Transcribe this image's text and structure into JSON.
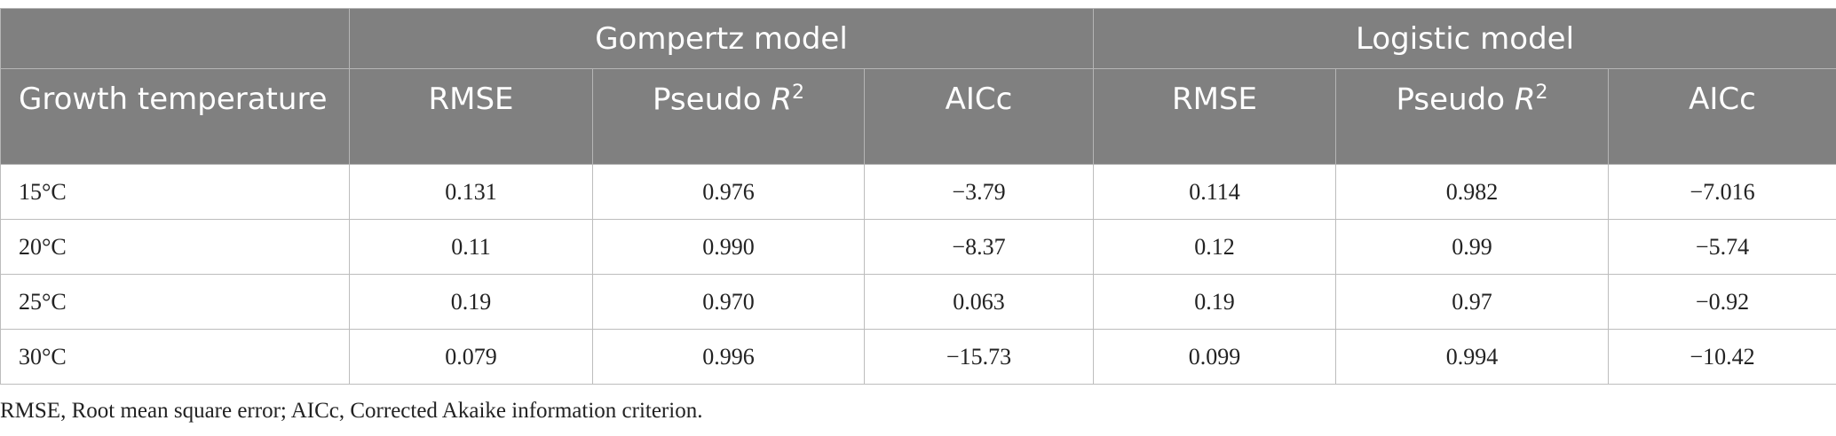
{
  "table": {
    "group_headers": [
      "Gompertz model",
      "Logistic model"
    ],
    "row_header": "Growth temperature",
    "column_headers": [
      {
        "text": "RMSE"
      },
      {
        "prefix": "Pseudo",
        "symbol": "R",
        "superscript": "2"
      },
      {
        "text": "AICc"
      },
      {
        "text": "RMSE"
      },
      {
        "prefix": "Pseudo",
        "symbol": "R",
        "superscript": "2"
      },
      {
        "text": "AICc"
      }
    ],
    "rows": [
      [
        "15°C",
        "0.131",
        "0.976",
        "−3.79",
        "0.114",
        "0.982",
        "−7.016"
      ],
      [
        "20°C",
        "0.11",
        "0.990",
        "−8.37",
        "0.12",
        "0.99",
        "−5.74"
      ],
      [
        "25°C",
        "0.19",
        "0.970",
        "0.063",
        "0.19",
        "0.97",
        "−0.92"
      ],
      [
        "30°C",
        "0.079",
        "0.996",
        "−15.73",
        "0.099",
        "0.994",
        "−10.42"
      ]
    ],
    "footnote": "RMSE, Root mean square error; AICc, Corrected Akaike information criterion."
  }
}
